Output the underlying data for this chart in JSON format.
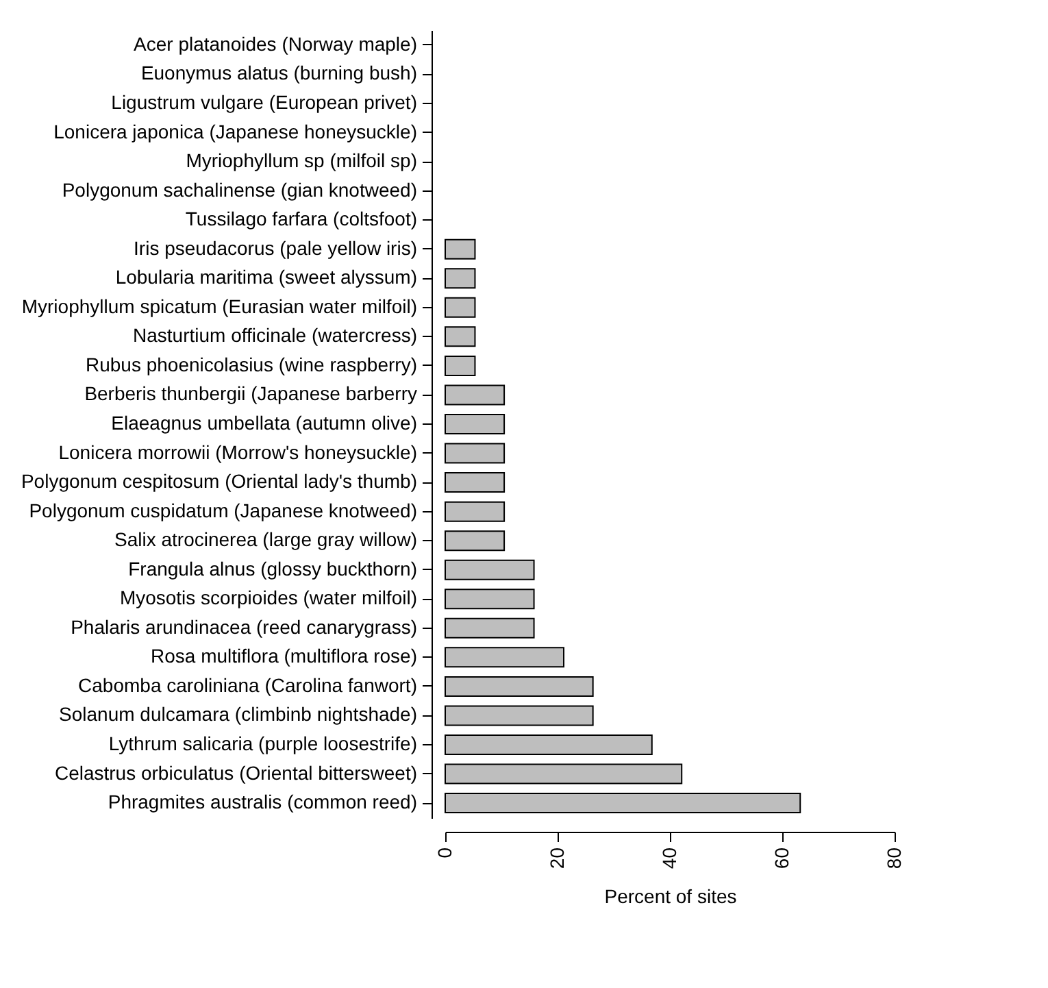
{
  "chart_data": {
    "type": "bar",
    "orientation": "horizontal",
    "xlabel": "Percent of sites",
    "categories": [
      "Acer platanoides (Norway maple)",
      "Euonymus alatus (burning bush)",
      "Ligustrum vulgare (European privet)",
      "Lonicera japonica (Japanese honeysuckle)",
      "Myriophyllum sp (milfoil sp)",
      "Polygonum sachalinense (gian knotweed)",
      "Tussilago farfara (coltsfoot)",
      "Iris pseudacorus (pale yellow iris)",
      "Lobularia maritima (sweet alyssum)",
      "Myriophyllum spicatum (Eurasian water milfoil)",
      "Nasturtium officinale (watercress)",
      "Rubus phoenicolasius (wine raspberry)",
      "Berberis thunbergii (Japanese barberry",
      "Elaeagnus umbellata (autumn olive)",
      "Lonicera morrowii (Morrow's honeysuckle)",
      "Polygonum cespitosum (Oriental lady's thumb)",
      "Polygonum cuspidatum (Japanese knotweed)",
      "Salix atrocinerea (large gray willow)",
      "Frangula alnus (glossy buckthorn)",
      "Myosotis scorpioides (water milfoil)",
      "Phalaris arundinacea (reed canarygrass)",
      "Rosa multiflora (multiflora rose)",
      "Cabomba caroliniana (Carolina fanwort)",
      "Solanum dulcamara (climbinb nightshade)",
      "Lythrum salicaria (purple loosestrife)",
      "Celastrus orbiculatus (Oriental bittersweet)",
      "Phragmites australis (common reed)"
    ],
    "values": [
      0,
      0,
      0,
      0,
      0,
      0,
      0,
      5.3,
      5.3,
      5.3,
      5.3,
      5.3,
      10.5,
      10.5,
      10.5,
      10.5,
      10.5,
      10.5,
      15.8,
      15.8,
      15.8,
      21.1,
      26.3,
      26.3,
      36.8,
      42.1,
      63.2
    ],
    "color": "#bebebe",
    "xlim": [
      0,
      80
    ],
    "xticks": [
      0,
      20,
      40,
      60,
      80
    ],
    "grid": false
  }
}
